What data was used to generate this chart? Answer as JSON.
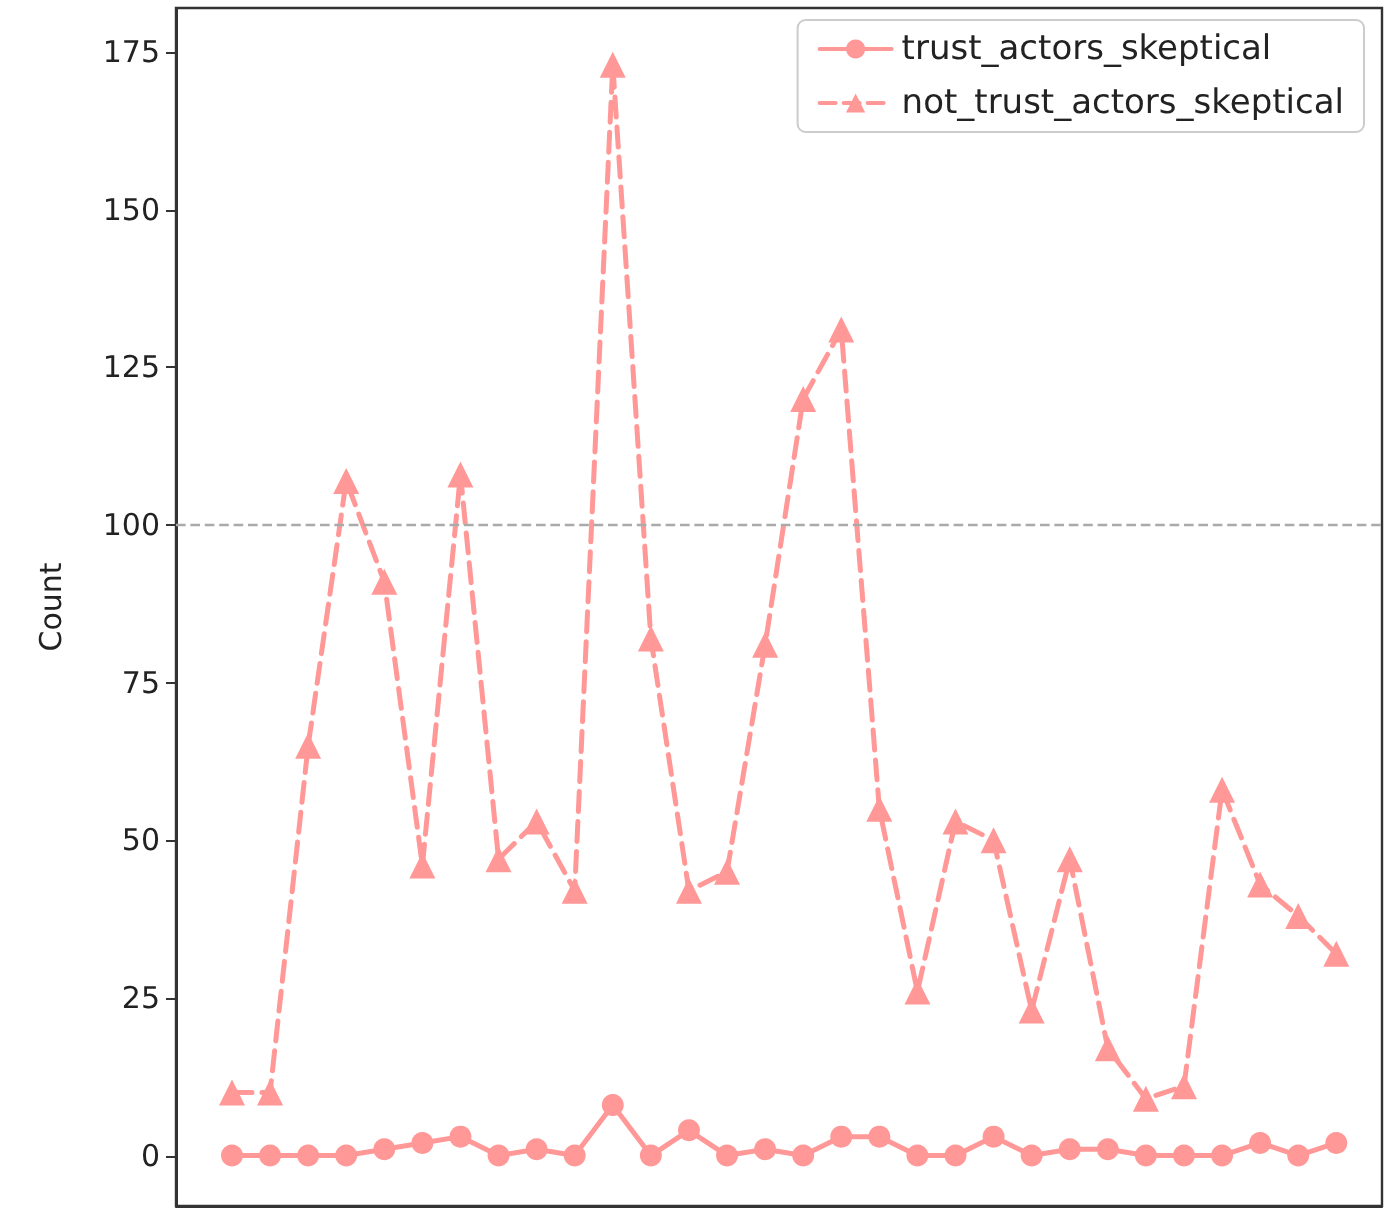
{
  "chart_data": {
    "type": "line",
    "ylabel": "Count",
    "categories": [
      null,
      null,
      null,
      null,
      null,
      null,
      null,
      null,
      null,
      null,
      null,
      null,
      null,
      null,
      null,
      null,
      null,
      null,
      null,
      null,
      null,
      null,
      null,
      null,
      null,
      null,
      null,
      null,
      null,
      null
    ],
    "series": [
      {
        "name": "trust_actors_skeptical",
        "color": "#ff9896",
        "marker": "circle",
        "line_style": "solid",
        "values": [
          0,
          0,
          0,
          0,
          1,
          2,
          3,
          0,
          1,
          0,
          8,
          0,
          4,
          0,
          1,
          0,
          3,
          3,
          0,
          0,
          3,
          0,
          1,
          1,
          0,
          0,
          0,
          2,
          0,
          2
        ]
      },
      {
        "name": "not_trust_actors_skeptical",
        "color": "#ff9896",
        "marker": "triangle",
        "line_style": "dashed",
        "values": [
          10,
          10,
          65,
          107,
          91,
          46,
          108,
          47,
          53,
          42,
          173,
          82,
          42,
          45,
          81,
          120,
          131,
          55,
          26,
          53,
          50,
          23,
          47,
          17,
          9,
          11,
          58,
          43,
          38,
          32
        ]
      }
    ],
    "ylim": [
      -8,
      182
    ],
    "yticks": [
      0,
      25,
      50,
      75,
      100,
      125,
      150,
      175
    ],
    "ref_lines": [
      {
        "axis": "y",
        "value": 100,
        "color": "#aaaaaa",
        "line_style": "dashed"
      }
    ],
    "grid": false,
    "legend": "top right",
    "tick_labels": "y"
  }
}
